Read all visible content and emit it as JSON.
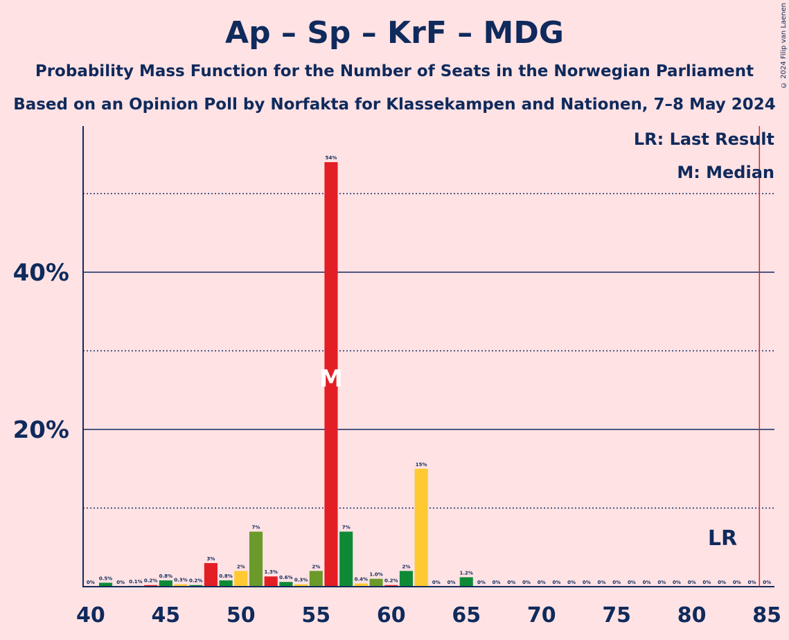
{
  "title": "Ap – Sp – KrF – MDG",
  "subtitle": "Probability Mass Function for the Number of Seats in the Norwegian Parliament",
  "subtitle2": "Based on an Opinion Poll by Norfakta for Klassekampen and Nationen, 7–8 May 2024",
  "copyright": "© 2024 Filip van Laenen",
  "legend": {
    "lr": "LR: Last Result",
    "m": "M: Median"
  },
  "markers": {
    "lr_label": "LR",
    "median_label": "M",
    "last_result_seat": 85,
    "median_seat": 56
  },
  "colors": {
    "background": "#ffe2e4",
    "text": "#0f2a5c",
    "red": "#e31e24",
    "green": "#0e8a37",
    "olive": "#6a9a2a",
    "yellow": "#ffc932",
    "lr_line": "#e31e24"
  },
  "chart_data": {
    "type": "bar",
    "xlabel": "",
    "ylabel": "",
    "xlim": [
      40,
      85
    ],
    "ylim": [
      0,
      58
    ],
    "x_ticks": [
      "40",
      "45",
      "50",
      "55",
      "60",
      "65",
      "70",
      "75",
      "80",
      "85"
    ],
    "y_ticks": [
      {
        "value": 20,
        "label": "20%"
      },
      {
        "value": 40,
        "label": "40%"
      }
    ],
    "gridlines_solid": [
      20,
      40
    ],
    "gridlines_dotted": [
      10,
      30,
      50
    ],
    "bars": [
      {
        "seats": 40,
        "value": 0,
        "label": "0%",
        "color": "#0e8a37"
      },
      {
        "seats": 41,
        "value": 0.5,
        "label": "0.5%",
        "color": "#0e8a37"
      },
      {
        "seats": 42,
        "value": 0,
        "label": "0%",
        "color": "#0e8a37"
      },
      {
        "seats": 43,
        "value": 0.1,
        "label": "0.1%",
        "color": "#0e8a37"
      },
      {
        "seats": 44,
        "value": 0.2,
        "label": "0.2%",
        "color": "#e31e24"
      },
      {
        "seats": 45,
        "value": 0.8,
        "label": "0.8%",
        "color": "#0e8a37"
      },
      {
        "seats": 46,
        "value": 0.3,
        "label": "0.3%",
        "color": "#ffc932"
      },
      {
        "seats": 47,
        "value": 0.2,
        "label": "0.2%",
        "color": "#0e8a37"
      },
      {
        "seats": 48,
        "value": 3,
        "label": "3%",
        "color": "#e31e24"
      },
      {
        "seats": 49,
        "value": 0.8,
        "label": "0.8%",
        "color": "#0e8a37"
      },
      {
        "seats": 50,
        "value": 2,
        "label": "2%",
        "color": "#ffc932"
      },
      {
        "seats": 51,
        "value": 7,
        "label": "7%",
        "color": "#6a9a2a"
      },
      {
        "seats": 52,
        "value": 1.3,
        "label": "1.3%",
        "color": "#e31e24"
      },
      {
        "seats": 53,
        "value": 0.6,
        "label": "0.6%",
        "color": "#0e8a37"
      },
      {
        "seats": 54,
        "value": 0.3,
        "label": "0.3%",
        "color": "#ffc932"
      },
      {
        "seats": 55,
        "value": 2,
        "label": "2%",
        "color": "#6a9a2a"
      },
      {
        "seats": 56,
        "value": 54,
        "label": "54%",
        "color": "#e31e24"
      },
      {
        "seats": 57,
        "value": 7,
        "label": "7%",
        "color": "#0e8a37"
      },
      {
        "seats": 58,
        "value": 0.4,
        "label": "0.4%",
        "color": "#ffc932"
      },
      {
        "seats": 59,
        "value": 1.0,
        "label": "1.0%",
        "color": "#6a9a2a"
      },
      {
        "seats": 60,
        "value": 0.2,
        "label": "0.2%",
        "color": "#e31e24"
      },
      {
        "seats": 61,
        "value": 2,
        "label": "2%",
        "color": "#0e8a37"
      },
      {
        "seats": 62,
        "value": 15,
        "label": "15%",
        "color": "#ffc932"
      },
      {
        "seats": 63,
        "value": 0,
        "label": "0%",
        "color": "#6a9a2a"
      },
      {
        "seats": 64,
        "value": 0,
        "label": "0%",
        "color": "#e31e24"
      },
      {
        "seats": 65,
        "value": 1.2,
        "label": "1.2%",
        "color": "#0e8a37"
      },
      {
        "seats": 66,
        "value": 0,
        "label": "0%",
        "color": "#0e8a37"
      },
      {
        "seats": 67,
        "value": 0,
        "label": "0%",
        "color": "#0e8a37"
      },
      {
        "seats": 68,
        "value": 0,
        "label": "0%",
        "color": "#0e8a37"
      },
      {
        "seats": 69,
        "value": 0,
        "label": "0%",
        "color": "#0e8a37"
      },
      {
        "seats": 70,
        "value": 0,
        "label": "0%",
        "color": "#0e8a37"
      },
      {
        "seats": 71,
        "value": 0,
        "label": "0%",
        "color": "#0e8a37"
      },
      {
        "seats": 72,
        "value": 0,
        "label": "0%",
        "color": "#0e8a37"
      },
      {
        "seats": 73,
        "value": 0,
        "label": "0%",
        "color": "#0e8a37"
      },
      {
        "seats": 74,
        "value": 0,
        "label": "0%",
        "color": "#0e8a37"
      },
      {
        "seats": 75,
        "value": 0,
        "label": "0%",
        "color": "#0e8a37"
      },
      {
        "seats": 76,
        "value": 0,
        "label": "0%",
        "color": "#0e8a37"
      },
      {
        "seats": 77,
        "value": 0,
        "label": "0%",
        "color": "#0e8a37"
      },
      {
        "seats": 78,
        "value": 0,
        "label": "0%",
        "color": "#0e8a37"
      },
      {
        "seats": 79,
        "value": 0,
        "label": "0%",
        "color": "#0e8a37"
      },
      {
        "seats": 80,
        "value": 0,
        "label": "0%",
        "color": "#0e8a37"
      },
      {
        "seats": 81,
        "value": 0,
        "label": "0%",
        "color": "#0e8a37"
      },
      {
        "seats": 82,
        "value": 0,
        "label": "0%",
        "color": "#0e8a37"
      },
      {
        "seats": 83,
        "value": 0,
        "label": "0%",
        "color": "#0e8a37"
      },
      {
        "seats": 84,
        "value": 0,
        "label": "0%",
        "color": "#0e8a37"
      },
      {
        "seats": 85,
        "value": 0,
        "label": "0%",
        "color": "#0e8a37"
      }
    ]
  }
}
